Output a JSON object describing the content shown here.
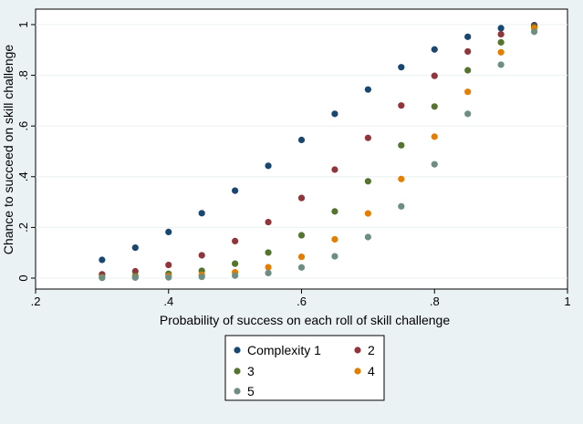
{
  "chart_data": {
    "type": "scatter",
    "title": "",
    "xlabel": "Probability of success on each roll of skill challenge",
    "ylabel": "Chance to succeed on skill challenge",
    "xlim": [
      0.2,
      1.0
    ],
    "ylim": [
      0.0,
      1.0
    ],
    "xticks": [
      0.2,
      0.4,
      0.6,
      0.8,
      1.0
    ],
    "xtick_labels": [
      ".2",
      ".4",
      ".6",
      ".8",
      "1"
    ],
    "yticks": [
      0.0,
      0.2,
      0.4,
      0.6,
      0.8,
      1.0
    ],
    "ytick_labels": [
      "0",
      ".2",
      ".4",
      ".6",
      ".8",
      "1"
    ],
    "grid": "horizontal",
    "legend_position": "bottom",
    "x": [
      0.3,
      0.35,
      0.4,
      0.45,
      0.5,
      0.55,
      0.6,
      0.65,
      0.7,
      0.75,
      0.8,
      0.85,
      0.9,
      0.95
    ],
    "series": [
      {
        "name": "Complexity 1",
        "color": "#1a476f",
        "values": [
          0.072,
          0.12,
          0.182,
          0.256,
          0.345,
          0.443,
          0.545,
          0.648,
          0.744,
          0.832,
          0.902,
          0.952,
          0.986,
          0.998
        ]
      },
      {
        "name": "2",
        "color": "#90353b",
        "values": [
          0.015,
          0.027,
          0.052,
          0.09,
          0.146,
          0.221,
          0.316,
          0.428,
          0.553,
          0.681,
          0.798,
          0.894,
          0.962,
          0.994
        ]
      },
      {
        "name": "3",
        "color": "#55752f",
        "values": [
          0.004,
          0.009,
          0.017,
          0.029,
          0.057,
          0.101,
          0.169,
          0.263,
          0.382,
          0.524,
          0.677,
          0.82,
          0.93,
          0.99
        ]
      },
      {
        "name": "4",
        "color": "#e37e00",
        "values": [
          0.002,
          0.004,
          0.008,
          0.013,
          0.023,
          0.043,
          0.084,
          0.153,
          0.255,
          0.391,
          0.558,
          0.735,
          0.891,
          0.986
        ]
      },
      {
        "name": "5",
        "color": "#6e8e84",
        "values": [
          0.001,
          0.002,
          0.003,
          0.005,
          0.01,
          0.02,
          0.042,
          0.086,
          0.162,
          0.283,
          0.449,
          0.648,
          0.842,
          0.972
        ]
      }
    ]
  }
}
